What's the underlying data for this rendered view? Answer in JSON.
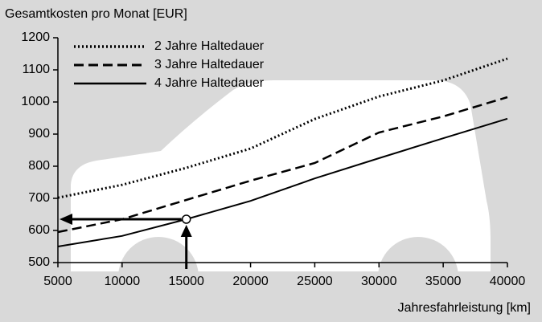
{
  "chart_data": {
    "type": "line",
    "title": "Gesamtkosten pro Monat [EUR]",
    "x_label": "Jahresfahrleistung [km]",
    "x": [
      5000,
      10000,
      15000,
      20000,
      25000,
      30000,
      35000,
      40000
    ],
    "series": [
      {
        "name": "2 Jahre Haltedauer",
        "color": "#000000",
        "dash": "dotted",
        "values": [
          702,
          742,
          795,
          855,
          947,
          1017,
          1067,
          1135
        ]
      },
      {
        "name": "3 Jahre Haltedauer",
        "color": "#000000",
        "dash": "dashed",
        "values": [
          595,
          635,
          695,
          755,
          810,
          905,
          955,
          1015
        ]
      },
      {
        "name": "4 Jahre Haltedauer",
        "color": "#000000",
        "dash": "solid",
        "values": [
          550,
          583,
          635,
          692,
          762,
          825,
          887,
          948
        ]
      }
    ],
    "xlim": [
      5000,
      40000
    ],
    "xticks": [
      5000,
      10000,
      15000,
      20000,
      25000,
      30000,
      35000,
      40000
    ],
    "ylim": [
      500,
      1200
    ],
    "yticks": [
      500,
      600,
      700,
      800,
      900,
      1000,
      1100,
      1200
    ],
    "grid": false,
    "legend": "top-left"
  }
}
